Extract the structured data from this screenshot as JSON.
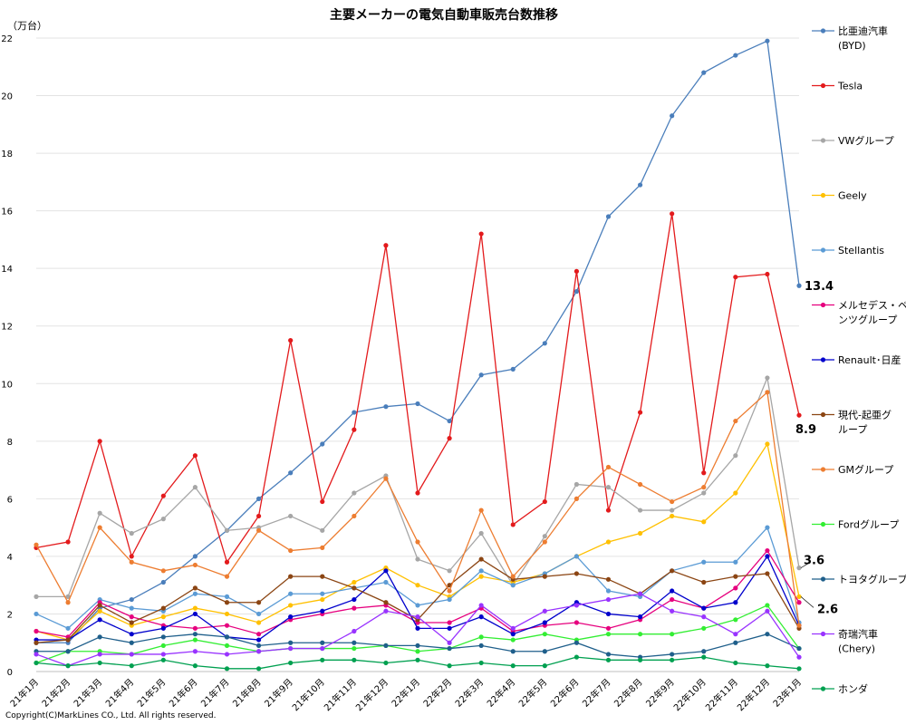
{
  "chart_data": {
    "type": "line",
    "title": "主要メーカーの電気自動車販売台数推移",
    "ylabel": "（万台）",
    "copyright": "Copyright(C)MarkLines CO., Ltd. All rights reserved.",
    "ylim": [
      0,
      22
    ],
    "yticks": [
      0,
      2,
      4,
      6,
      8,
      10,
      12,
      14,
      16,
      18,
      20,
      22
    ],
    "grid": "horizontal",
    "legend_position": "right",
    "categories": [
      "21年1月",
      "21年2月",
      "21年3月",
      "21年4月",
      "21年5月",
      "21年6月",
      "21年7月",
      "21年8月",
      "21年9月",
      "21年10月",
      "21年11月",
      "21年12月",
      "22年1月",
      "22年2月",
      "22年3月",
      "22年4月",
      "22年5月",
      "22年6月",
      "22年7月",
      "22年8月",
      "22年9月",
      "22年10月",
      "22年11月",
      "22年12月",
      "23年1月"
    ],
    "annotations": [
      {
        "text": "13.4",
        "x": "23年1月",
        "y": 13.4
      },
      {
        "text": "8.9",
        "x": "23年1月",
        "y": 8.9
      },
      {
        "text": "3.6",
        "x": "23年1月",
        "y": 3.6
      },
      {
        "text": "2.6",
        "x": "23年1月",
        "y": 2.6
      }
    ],
    "series": [
      {
        "name": "比亜迪汽車(BYD)",
        "label_lines": [
          "比亜迪汽車",
          "(BYD)"
        ],
        "color": "#4a7ebb",
        "values": [
          1.0,
          1.0,
          2.2,
          2.5,
          3.1,
          4.0,
          4.9,
          6.0,
          6.9,
          7.9,
          9.0,
          9.2,
          9.3,
          8.7,
          10.3,
          10.5,
          11.4,
          13.2,
          15.8,
          16.9,
          19.3,
          20.8,
          21.4,
          21.9,
          13.4
        ]
      },
      {
        "name": "Tesla",
        "label_lines": [
          "Tesla"
        ],
        "color": "#e31a1c",
        "values": [
          4.3,
          4.5,
          8.0,
          4.0,
          6.1,
          7.5,
          3.8,
          5.4,
          11.5,
          5.9,
          8.4,
          14.8,
          6.2,
          8.1,
          15.2,
          5.1,
          5.9,
          13.9,
          5.6,
          9.0,
          15.9,
          6.9,
          13.7,
          13.8,
          8.9
        ]
      },
      {
        "name": "VWグループ",
        "label_lines": [
          "VWグループ"
        ],
        "color": "#a6a6a6",
        "values": [
          2.6,
          2.6,
          5.5,
          4.8,
          5.3,
          6.4,
          4.9,
          5.0,
          5.4,
          4.9,
          6.2,
          6.8,
          3.9,
          3.5,
          4.8,
          3.0,
          4.7,
          6.5,
          6.4,
          5.6,
          5.6,
          6.2,
          7.5,
          10.2,
          3.6
        ]
      },
      {
        "name": "Geely",
        "label_lines": [
          "Geely"
        ],
        "color": "#ffc000",
        "values": [
          1.4,
          1.1,
          2.1,
          1.6,
          1.9,
          2.2,
          2.0,
          1.7,
          2.3,
          2.5,
          3.1,
          3.6,
          3.0,
          2.6,
          3.3,
          3.1,
          3.4,
          4.0,
          4.5,
          4.8,
          5.4,
          5.2,
          6.2,
          7.9,
          2.6
        ]
      },
      {
        "name": "Stellantis",
        "label_lines": [
          "Stellantis"
        ],
        "color": "#5b9bd5",
        "values": [
          2.0,
          1.5,
          2.5,
          2.2,
          2.1,
          2.7,
          2.6,
          2.0,
          2.7,
          2.7,
          2.9,
          3.1,
          2.3,
          2.5,
          3.5,
          3.0,
          3.4,
          4.0,
          2.8,
          2.6,
          3.5,
          3.8,
          3.8,
          5.0,
          1.7
        ]
      },
      {
        "name": "メルセデス・ベンツグループ",
        "label_lines": [
          "メルセデス・ベ",
          "ンツグループ"
        ],
        "color": "#e6007e",
        "values": [
          1.4,
          1.2,
          2.4,
          1.9,
          1.6,
          1.5,
          1.6,
          1.3,
          1.8,
          2.0,
          2.2,
          2.3,
          1.7,
          1.7,
          2.2,
          1.4,
          1.6,
          1.7,
          1.5,
          1.8,
          2.5,
          2.2,
          2.9,
          4.2,
          2.4
        ]
      },
      {
        "name": "Renault･日産",
        "label_lines": [
          "Renault･日産"
        ],
        "color": "#0000cc",
        "values": [
          1.1,
          1.1,
          1.8,
          1.3,
          1.5,
          2.0,
          1.2,
          1.1,
          1.9,
          2.1,
          2.5,
          3.5,
          1.5,
          1.5,
          1.9,
          1.3,
          1.7,
          2.4,
          2.0,
          1.9,
          2.8,
          2.2,
          2.4,
          4.0,
          1.6
        ]
      },
      {
        "name": "現代-起亜グループ",
        "label_lines": [
          "現代-起亜グ",
          "ループ"
        ],
        "color": "#8b4513",
        "values": [
          1.0,
          1.1,
          2.3,
          1.7,
          2.2,
          2.9,
          2.4,
          2.4,
          3.3,
          3.3,
          2.9,
          2.4,
          1.8,
          3.0,
          3.9,
          3.2,
          3.3,
          3.4,
          3.2,
          2.7,
          3.5,
          3.1,
          3.3,
          3.4,
          1.5
        ]
      },
      {
        "name": "GMグループ",
        "label_lines": [
          "GMグループ"
        ],
        "color": "#ed7d31",
        "values": [
          4.4,
          2.4,
          5.0,
          3.8,
          3.5,
          3.7,
          3.3,
          4.9,
          4.2,
          4.3,
          5.4,
          6.7,
          4.5,
          2.8,
          5.6,
          3.3,
          4.5,
          6.0,
          7.1,
          6.5,
          5.9,
          6.4,
          8.7,
          9.7,
          1.6
        ]
      },
      {
        "name": "Fordグループ",
        "label_lines": [
          "Fordグループ"
        ],
        "color": "#33ee33",
        "values": [
          0.3,
          0.7,
          0.7,
          0.6,
          0.9,
          1.1,
          0.9,
          0.7,
          0.8,
          0.8,
          0.8,
          0.9,
          0.7,
          0.8,
          1.2,
          1.1,
          1.3,
          1.1,
          1.3,
          1.3,
          1.3,
          1.5,
          1.8,
          2.3,
          0.8
        ]
      },
      {
        "name": "トヨタグループ",
        "label_lines": [
          "トヨタグループ"
        ],
        "color": "#1f5f8b",
        "values": [
          0.7,
          0.7,
          1.2,
          1.0,
          1.2,
          1.3,
          1.2,
          0.9,
          1.0,
          1.0,
          1.0,
          0.9,
          0.9,
          0.8,
          0.9,
          0.7,
          0.7,
          1.0,
          0.6,
          0.5,
          0.6,
          0.7,
          1.0,
          1.3,
          0.8
        ]
      },
      {
        "name": "奇瑞汽車(Chery)",
        "label_lines": [
          "奇瑞汽車",
          "(Chery)"
        ],
        "color": "#9933ff",
        "values": [
          0.6,
          0.2,
          0.6,
          0.6,
          0.6,
          0.7,
          0.6,
          0.7,
          0.8,
          0.8,
          1.4,
          2.1,
          1.9,
          1.0,
          2.3,
          1.5,
          2.1,
          2.3,
          2.5,
          2.7,
          2.1,
          1.9,
          1.3,
          2.1,
          0.5
        ]
      },
      {
        "name": "ホンダ",
        "label_lines": [
          "ホンダ"
        ],
        "color": "#00a050",
        "values": [
          0.3,
          0.2,
          0.3,
          0.2,
          0.4,
          0.2,
          0.1,
          0.1,
          0.3,
          0.4,
          0.4,
          0.3,
          0.4,
          0.2,
          0.3,
          0.2,
          0.2,
          0.5,
          0.4,
          0.4,
          0.4,
          0.5,
          0.3,
          0.2,
          0.1
        ]
      }
    ]
  }
}
